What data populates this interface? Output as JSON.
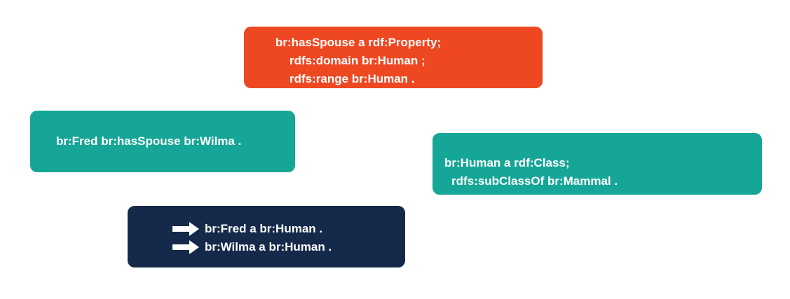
{
  "colors": {
    "property_box": "#EE4823",
    "triple_box": "#16A697",
    "class_box": "#16A697",
    "inferred_box": "#15294A",
    "text": "#FFFFFF"
  },
  "property_box": {
    "lines": [
      "br:hasSpouse a rdf:Property;",
      "rdfs:domain br:Human ;",
      "rdfs:range br:Human ."
    ]
  },
  "triple_box": {
    "lines": [
      "br:Fred br:hasSpouse br:Wilma ."
    ]
  },
  "class_box": {
    "lines": [
      "br:Human a rdf:Class;",
      "rdfs:subClassOf br:Mammal ."
    ]
  },
  "inferred_box": {
    "icon": "right-arrow-icon",
    "lines": [
      "br:Fred a br:Human .",
      "br:Wilma a br:Human ."
    ]
  }
}
